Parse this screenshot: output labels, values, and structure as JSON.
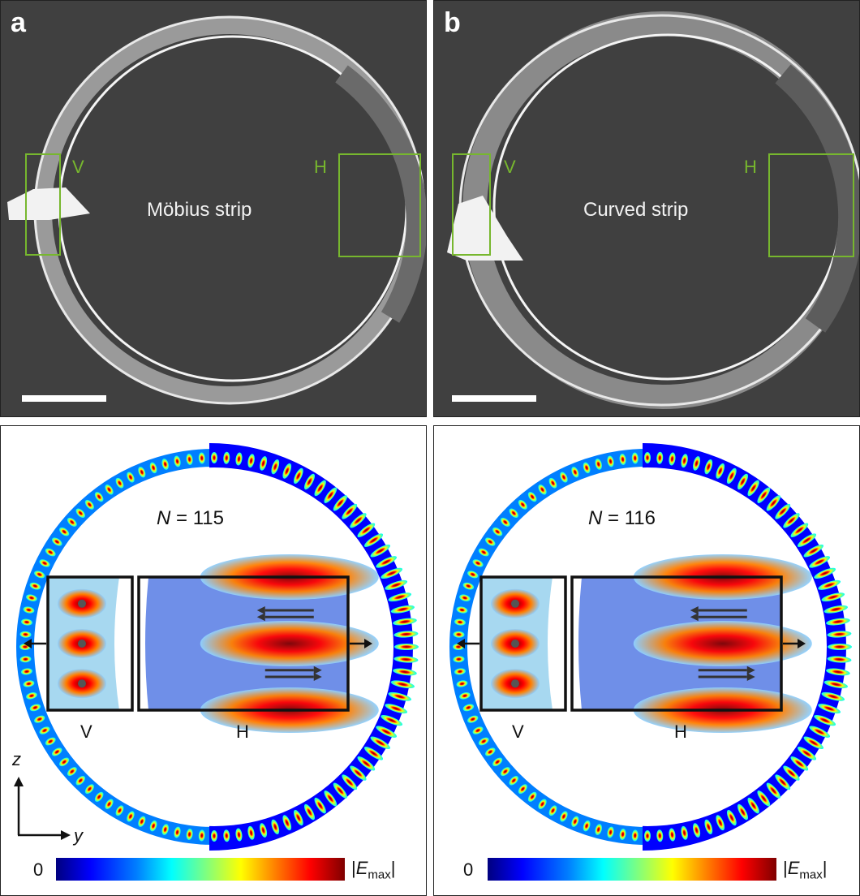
{
  "figure": {
    "panel_a": {
      "label": "a",
      "title": "Möbius strip",
      "box_v_label": "V",
      "box_h_label": "H",
      "colors": {
        "box": "#77b72e",
        "background": "#404040"
      }
    },
    "panel_b": {
      "label": "b",
      "title": "Curved strip",
      "box_v_label": "V",
      "box_h_label": "H",
      "colors": {
        "box": "#77b72e",
        "background": "#404040"
      }
    },
    "panel_c": {
      "mode_var": "N",
      "mode_eq": " = 115",
      "mode_number": 115,
      "inset_v_label": "V",
      "inset_h_label": "H",
      "axis_z": "z",
      "axis_y": "y",
      "colorbar_min": "0",
      "colorbar_max_prefix": "|",
      "colorbar_max_var": "E",
      "colorbar_max_sub": "max",
      "colorbar_max_suffix": "|"
    },
    "panel_d": {
      "mode_var": "N",
      "mode_eq": " = 116",
      "mode_number": 116,
      "inset_v_label": "V",
      "inset_h_label": "H",
      "colorbar_min": "0",
      "colorbar_max_prefix": "|",
      "colorbar_max_var": "E",
      "colorbar_max_sub": "max",
      "colorbar_max_suffix": "|"
    },
    "colormap": [
      "#00007f",
      "#0000ff",
      "#007fff",
      "#00ffff",
      "#7fff7f",
      "#ffff00",
      "#ff7f00",
      "#ff0000",
      "#7f0000"
    ]
  }
}
